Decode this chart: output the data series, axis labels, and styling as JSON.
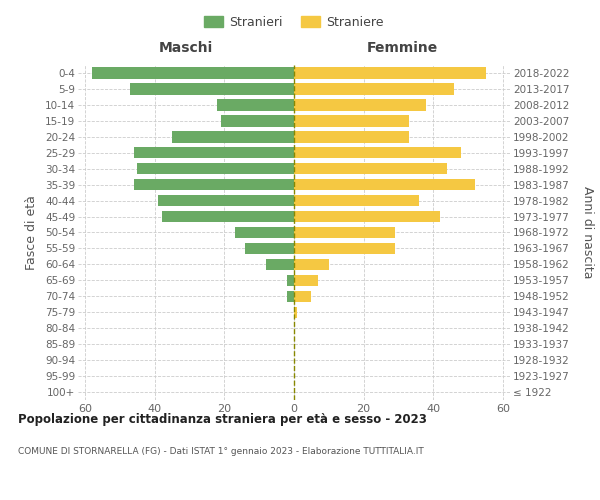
{
  "age_groups": [
    "100+",
    "95-99",
    "90-94",
    "85-89",
    "80-84",
    "75-79",
    "70-74",
    "65-69",
    "60-64",
    "55-59",
    "50-54",
    "45-49",
    "40-44",
    "35-39",
    "30-34",
    "25-29",
    "20-24",
    "15-19",
    "10-14",
    "5-9",
    "0-4"
  ],
  "birth_years": [
    "≤ 1922",
    "1923-1927",
    "1928-1932",
    "1933-1937",
    "1938-1942",
    "1943-1947",
    "1948-1952",
    "1953-1957",
    "1958-1962",
    "1963-1967",
    "1968-1972",
    "1973-1977",
    "1978-1982",
    "1983-1987",
    "1988-1992",
    "1993-1997",
    "1998-2002",
    "2003-2007",
    "2008-2012",
    "2013-2017",
    "2018-2022"
  ],
  "males": [
    0,
    0,
    0,
    0,
    0,
    0,
    2,
    2,
    8,
    14,
    17,
    38,
    39,
    46,
    45,
    46,
    35,
    21,
    22,
    47,
    58
  ],
  "females": [
    0,
    0,
    0,
    0,
    0,
    1,
    5,
    7,
    10,
    29,
    29,
    42,
    36,
    52,
    44,
    48,
    33,
    33,
    38,
    46,
    55
  ],
  "male_color": "#6aaa64",
  "female_color": "#f5c842",
  "center_line_color": "#888800",
  "grid_color": "#cccccc",
  "title": "Popolazione per cittadinanza straniera per età e sesso - 2023",
  "subtitle": "COMUNE DI STORNARELLA (FG) - Dati ISTAT 1° gennaio 2023 - Elaborazione TUTTITALIA.IT",
  "left_label": "Maschi",
  "right_label": "Femmine",
  "y_left_label": "Fasce di età",
  "y_right_label": "Anni di nascita",
  "legend_male": "Stranieri",
  "legend_female": "Straniere",
  "xlim": 62,
  "background_color": "#ffffff"
}
